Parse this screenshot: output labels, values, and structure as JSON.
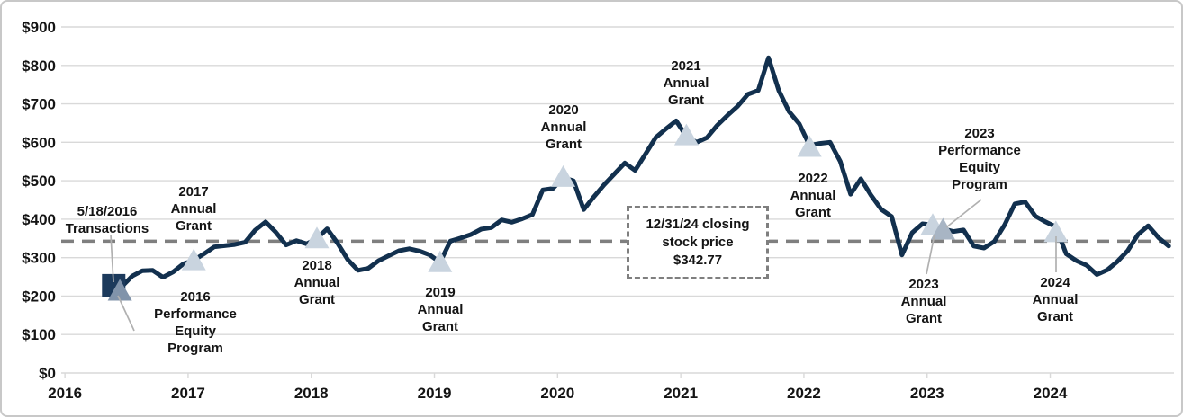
{
  "chart": {
    "y_axis_labels": [
      "$900",
      "$800",
      "$700",
      "$600",
      "$500",
      "$400",
      "$300",
      "$200",
      "$100",
      "$0"
    ],
    "x_axis_labels": [
      "2016",
      "2017",
      "2018",
      "2019",
      "2020",
      "2021",
      "2022",
      "2023",
      "2024"
    ],
    "colors": {
      "line": "#12304e",
      "square_marker": "#1c3a5c",
      "triangle_light": "#c9d4df",
      "triangle_medium": "#a8b5c4",
      "triangle_slate": "#8093aa",
      "grid": "#d9d9d9",
      "dashed_reference": "#7f7f7f",
      "leader": "#b0b0b0",
      "axis_text": "#141414"
    }
  },
  "chart_data": {
    "type": "line",
    "title": "",
    "frequency": "monthly",
    "x_start": "2016-05",
    "x_end": "2024-12",
    "xlabel": "",
    "ylabel": "",
    "ylim": [
      0,
      900
    ],
    "y_tick_step": 100,
    "grid": "horizontal",
    "series": [
      {
        "name": "Stock price",
        "values": [
          222,
          225,
          252,
          266,
          267,
          249,
          263,
          284,
          293,
          310,
          328,
          331,
          334,
          340,
          372,
          393,
          366,
          333,
          344,
          336,
          350,
          375,
          338,
          295,
          267,
          272,
          292,
          305,
          318,
          323,
          317,
          307,
          288,
          343,
          351,
          360,
          374,
          378,
          398,
          392,
          401,
          412,
          476,
          480,
          508,
          500,
          425,
          459,
          490,
          518,
          546,
          527,
          569,
          612,
          635,
          656,
          615,
          600,
          612,
          644,
          670,
          694,
          725,
          735,
          820,
          735,
          680,
          648,
          592,
          597,
          600,
          550,
          465,
          505,
          462,
          425,
          407,
          307,
          365,
          388,
          385,
          375,
          368,
          372,
          330,
          325,
          342,
          385,
          440,
          445,
          408,
          393,
          380,
          310,
          292,
          280,
          256,
          268,
          290,
          318,
          360,
          383,
          352,
          330
        ]
      }
    ],
    "reference_line": {
      "label": "12/31/24 closing stock price",
      "value": 342.77
    },
    "markers": [
      {
        "id": "transactions-2016",
        "label": "5/18/2016 Transactions",
        "shape": "square",
        "color": "square_marker",
        "month_offset": 0.2,
        "value": 227
      },
      {
        "id": "pep-2016",
        "label": "2016 Performance Equity Program",
        "shape": "triangle",
        "color": "triangle_slate",
        "month_offset": 0.8,
        "value": 214
      },
      {
        "id": "annual-grant-2017",
        "label": "2017 Annual Grant",
        "shape": "triangle",
        "color": "triangle_light",
        "month_offset": 8,
        "value": 293
      },
      {
        "id": "annual-grant-2018",
        "label": "2018 Annual Grant",
        "shape": "triangle",
        "color": "triangle_light",
        "month_offset": 20,
        "value": 350
      },
      {
        "id": "annual-grant-2019",
        "label": "2019 Annual Grant",
        "shape": "triangle",
        "color": "triangle_light",
        "month_offset": 32,
        "value": 288
      },
      {
        "id": "annual-grant-2020",
        "label": "2020 Annual Grant",
        "shape": "triangle",
        "color": "triangle_light",
        "month_offset": 44,
        "value": 510
      },
      {
        "id": "annual-grant-2021",
        "label": "2021 Annual Grant",
        "shape": "triangle",
        "color": "triangle_light",
        "month_offset": 56,
        "value": 618
      },
      {
        "id": "annual-grant-2022",
        "label": "2022 Annual Grant",
        "shape": "triangle",
        "color": "triangle_light",
        "month_offset": 68,
        "value": 588
      },
      {
        "id": "annual-grant-2023",
        "label": "2023 Annual Grant",
        "shape": "triangle",
        "color": "triangle_light",
        "month_offset": 80,
        "value": 385
      },
      {
        "id": "pep-2023",
        "label": "2023 Performance Equity Program",
        "shape": "triangle",
        "color": "triangle_medium",
        "month_offset": 81,
        "value": 373
      },
      {
        "id": "annual-grant-2024",
        "label": "2024 Annual Grant",
        "shape": "triangle",
        "color": "triangle_light",
        "month_offset": 92,
        "value": 366
      }
    ]
  },
  "annotations": [
    {
      "id": "transactions-2016",
      "text": "5/18/2016\nTransactions"
    },
    {
      "id": "annual-grant-2017",
      "text": "2017\nAnnual\nGrant"
    },
    {
      "id": "pep-2016",
      "text": "2016\nPerformance\nEquity\nProgram"
    },
    {
      "id": "annual-grant-2018",
      "text": "2018\nAnnual\nGrant"
    },
    {
      "id": "annual-grant-2019",
      "text": "2019\nAnnual\nGrant"
    },
    {
      "id": "annual-grant-2020",
      "text": "2020\nAnnual\nGrant"
    },
    {
      "id": "annual-grant-2021",
      "text": "2021\nAnnual\nGrant"
    },
    {
      "id": "annual-grant-2022",
      "text": "2022\nAnnual\nGrant"
    },
    {
      "id": "pep-2023",
      "text": "2023\nPerformance\nEquity\nProgram"
    },
    {
      "id": "annual-grant-2023",
      "text": "2023\nAnnual\nGrant"
    },
    {
      "id": "annual-grant-2024",
      "text": "2024\nAnnual\nGrant"
    }
  ],
  "closing_box": {
    "text": "12/31/24 closing\nstock price\n$342.77"
  }
}
